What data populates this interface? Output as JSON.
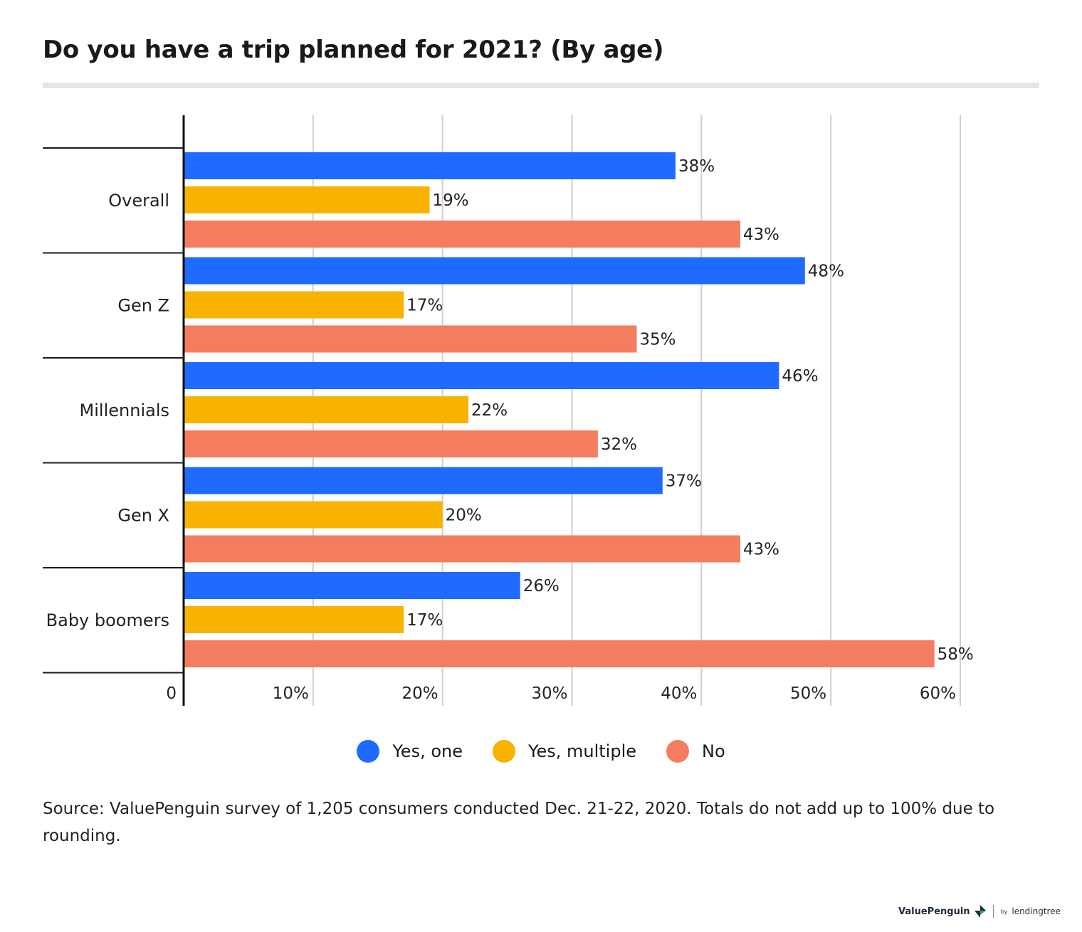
{
  "title": "Do you have a trip planned for 2021? (By age)",
  "chart_data": {
    "type": "bar",
    "orientation": "horizontal",
    "categories": [
      "Overall",
      "Gen Z",
      "Millennials",
      "Gen X",
      "Baby boomers"
    ],
    "series": [
      {
        "name": "Yes, one",
        "color": "#1f6bff",
        "values": [
          38,
          48,
          46,
          37,
          26
        ]
      },
      {
        "name": "Yes, multiple",
        "color": "#f8b200",
        "values": [
          19,
          17,
          22,
          20,
          17
        ]
      },
      {
        "name": "No",
        "color": "#f47c5f",
        "values": [
          43,
          35,
          32,
          43,
          58
        ]
      }
    ],
    "value_suffix": "%",
    "xlim": [
      0,
      60
    ],
    "x_ticks": [
      {
        "value": 0,
        "label": "0"
      },
      {
        "value": 10,
        "label": "10%"
      },
      {
        "value": 20,
        "label": "20%"
      },
      {
        "value": 30,
        "label": "30%"
      },
      {
        "value": 40,
        "label": "40%"
      },
      {
        "value": 50,
        "label": "50%"
      },
      {
        "value": 60,
        "label": "60%"
      }
    ],
    "grid": true,
    "legend_position": "bottom"
  },
  "legend": {
    "items": [
      {
        "label": "Yes, one",
        "color": "#1f6bff"
      },
      {
        "label": "Yes, multiple",
        "color": "#f8b200"
      },
      {
        "label": "No",
        "color": "#f47c5f"
      }
    ]
  },
  "source": "Source: ValuePenguin survey of 1,205 consumers conducted Dec. 21-22, 2020. Totals do not add up to 100% due to rounding.",
  "brand": {
    "name": "ValuePenguin",
    "partner_prefix": "by",
    "partner": "lendingtree"
  }
}
